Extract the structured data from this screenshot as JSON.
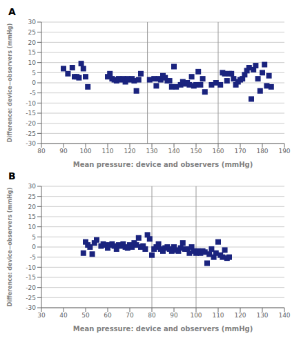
{
  "chart_data": [
    {
      "type": "scatter",
      "title": "A",
      "x_label": "Mean pressure: device and observers (mmHg)",
      "y_label": "Difference: device−observers (mmHg)",
      "xlim": [
        80,
        190
      ],
      "ylim": [
        -30,
        30
      ],
      "xticks": [
        80,
        90,
        100,
        110,
        120,
        130,
        140,
        150,
        160,
        170,
        180,
        190
      ],
      "yticks": [
        -30,
        -25,
        -20,
        -15,
        -10,
        -5,
        0,
        5,
        10,
        15,
        20,
        25,
        30
      ],
      "vlines": [
        128,
        160
      ],
      "x": [
        90,
        92,
        94,
        95,
        96,
        97,
        98,
        99,
        100,
        101,
        110,
        111,
        112,
        113,
        114,
        115,
        116,
        117,
        118,
        119,
        120,
        121,
        122,
        123,
        124,
        125,
        129,
        131,
        132,
        133,
        134,
        135,
        136,
        137,
        138,
        139,
        140,
        141,
        143,
        144,
        145,
        146,
        147,
        148,
        149,
        150,
        151,
        152,
        153,
        154,
        157,
        159,
        161,
        162,
        163,
        164,
        165,
        166,
        167,
        168,
        169,
        170,
        171,
        172,
        173,
        174,
        175,
        176,
        177,
        178,
        179,
        180,
        181,
        182,
        183,
        184
      ],
      "values": [
        7,
        4.5,
        7.5,
        3,
        3,
        2.5,
        9.5,
        7,
        3,
        -2,
        3,
        4.5,
        2,
        1.5,
        1,
        2,
        1.5,
        2,
        0.5,
        2,
        1.5,
        2,
        1,
        -4,
        1.5,
        4.5,
        1.5,
        2,
        -1.5,
        2,
        1.5,
        3.5,
        2.5,
        1,
        1,
        -2,
        8,
        -2,
        -1,
        0.5,
        -0.5,
        0,
        -1,
        3,
        -1.5,
        -1,
        5.5,
        -1,
        2,
        -4.5,
        -1,
        0,
        -1,
        5,
        4.5,
        1,
        4.5,
        4.5,
        2,
        -1,
        0.5,
        1.5,
        2,
        4,
        6,
        7.5,
        -8,
        6.5,
        8.5,
        2,
        -4,
        5,
        9,
        -1.5,
        3.5,
        -2
      ],
      "color": "#1a237e",
      "marker": "square",
      "grid": true
    },
    {
      "type": "scatter",
      "title": "B",
      "x_label": "Mean pressure: device and observers (mmHg)",
      "y_label": "Difference: device−observers (mmHg)",
      "xlim": [
        30,
        140
      ],
      "ylim": [
        -30,
        30
      ],
      "xticks": [
        30,
        40,
        50,
        60,
        70,
        80,
        90,
        100,
        110,
        120,
        130,
        140
      ],
      "yticks": [
        -30,
        -25,
        -20,
        -15,
        -10,
        -5,
        0,
        5,
        10,
        15,
        20,
        25,
        30
      ],
      "vlines": [
        80,
        100
      ],
      "x": [
        49,
        50,
        51,
        52,
        53,
        54,
        55,
        57,
        58,
        59,
        60,
        61,
        62,
        63,
        64,
        65,
        66,
        67,
        68,
        69,
        70,
        71,
        72,
        73,
        74,
        75,
        76,
        77,
        78,
        79,
        80,
        81,
        82,
        83,
        84,
        85,
        86,
        87,
        88,
        89,
        90,
        91,
        92,
        93,
        94,
        95,
        96,
        97,
        98,
        99,
        100,
        101,
        102,
        103,
        104,
        105,
        106,
        107,
        108,
        109,
        110,
        111,
        112,
        113,
        114,
        115
      ],
      "values": [
        -3,
        2.5,
        1,
        0,
        -3.5,
        2,
        3.5,
        0.5,
        1.5,
        1,
        -0.5,
        1,
        1.5,
        0.5,
        -1,
        1,
        0.5,
        1.5,
        0,
        -0.5,
        1,
        0,
        2,
        1,
        4.5,
        0,
        0.5,
        -1,
        6,
        4,
        -4,
        -1,
        0,
        1.5,
        -1,
        -2,
        -0.5,
        0,
        -1,
        -2,
        0,
        -1.5,
        -2,
        -0.5,
        2,
        -1,
        -1,
        -3,
        0,
        -2,
        -3,
        -2,
        -3,
        -2,
        -2.5,
        -8,
        -3.5,
        -1,
        -5,
        -3,
        2.5,
        -4,
        -5,
        -1.5,
        -5.5,
        -5
      ],
      "color": "#1a237e",
      "marker": "square",
      "grid": true
    }
  ]
}
